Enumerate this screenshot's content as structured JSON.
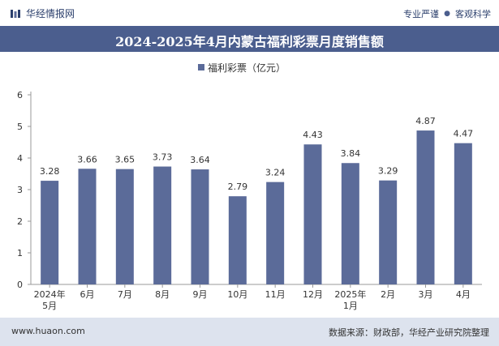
{
  "header": {
    "brand": "华经情报网",
    "tag_left": "专业严谨",
    "tag_right": "客观科学",
    "title": "2024-2025年4月内蒙古福利彩票月度销售额"
  },
  "footer": {
    "url": "www.huaon.com",
    "source": "数据来源：财政部，华经产业研究院整理"
  },
  "colors": {
    "bar": "#5b6b99",
    "title_bg": "#4b5e8e",
    "footer_bg": "#dde3ee"
  },
  "chart_data": {
    "type": "bar",
    "categories": [
      "2024年\n5月",
      "6月",
      "7月",
      "8月",
      "9月",
      "10月",
      "11月",
      "12月",
      "2025年\n1月",
      "2月",
      "3月",
      "4月"
    ],
    "series": [
      {
        "name": "福利彩票（亿元）",
        "values": [
          3.28,
          3.66,
          3.65,
          3.73,
          3.64,
          2.79,
          3.24,
          4.43,
          3.84,
          3.29,
          4.87,
          4.47
        ]
      }
    ],
    "ylim": [
      0,
      6
    ],
    "yticks": [
      0,
      1,
      2,
      3,
      4,
      5,
      6
    ],
    "legend_position": "top-center",
    "grid": false
  }
}
